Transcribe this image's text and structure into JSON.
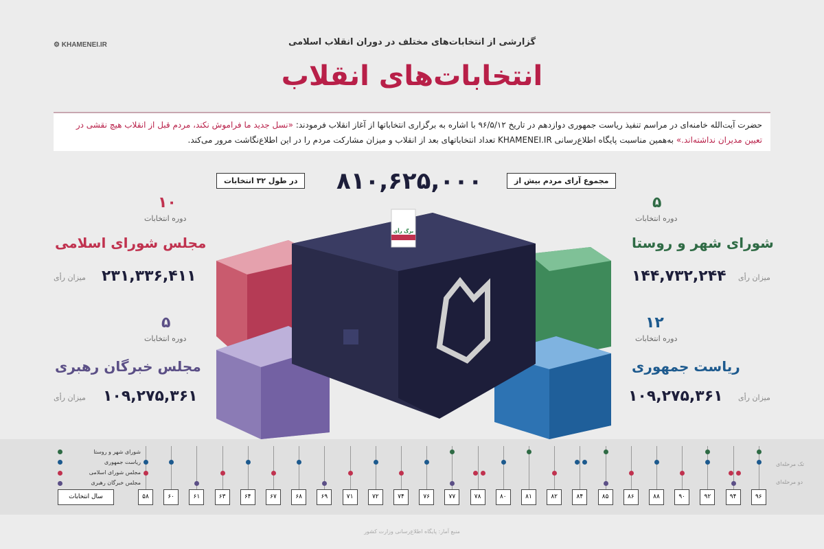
{
  "logo": "KHAMENEI.IR",
  "subtitle": "گزارشی از انتخابات‌های مختلف در دوران انقلاب اسلامی",
  "title": "انتخابات‌های انقلاب",
  "intro": {
    "text1": "حضرت آیت‌الله خامنه‌ای در مراسم تنفیذ ریاست جمهوری دوازدهم در تاریخ ۹۶/۵/۱۲ با اشاره به برگزاری انتخاباتها از آغاز انقلاب فرمودند: ",
    "quote": "«نسل جدید ما فراموش نکند، مردم قبل از انقلاب هیچ نقشی در تعیین مدیران نداشته‌اند.»",
    "text2": " به‌همین مناسبت پایگاه اطلاع‌رسانی KHAMENEI.IR تعداد انتخاباتهای بعد از انقلاب و میزان مشارکت مردم را در این اطلاع‌نگاشت مرور می‌کند."
  },
  "total": {
    "prefix": "مجموع آرای مردم بیش از",
    "value": "۸۱۰,۶۲۵,۰۰۰",
    "suffix": "در طول ۳۲ انتخابات"
  },
  "ballot_label": "برگ رأی",
  "stats": [
    {
      "count": "۱۰",
      "periods": "دوره انتخابات",
      "name": "مجلس شورای اسلامی",
      "votes": "۲۳۱,۳۳۶,۴۱۱",
      "votes_label": "میزان رأی",
      "color": "#c0324f"
    },
    {
      "count": "۵",
      "periods": "دوره انتخابات",
      "name": "مجلس خبرگان رهبری",
      "votes": "۱۰۹,۲۷۵,۳۶۱",
      "votes_label": "میزان رأی",
      "color": "#6a5a93"
    },
    {
      "count": "۵",
      "periods": "دوره انتخابات",
      "name": "شورای شهر و روستا",
      "votes": "۱۴۴,۷۳۲,۲۴۴",
      "votes_label": "میزان رأی",
      "color": "#2f6b45"
    },
    {
      "count": "۱۲",
      "periods": "دوره انتخابات",
      "name": "ریاست جمهوری",
      "votes": "۱۰۹,۲۷۵,۳۶۱",
      "votes_label": "میزان رأی",
      "color": "#1d5a8e"
    }
  ],
  "timeline": {
    "legend": [
      {
        "label": "شورای شهر و روستا",
        "color": "#2f6b45"
      },
      {
        "label": "ریاست جمهوری",
        "color": "#1d5a8e"
      },
      {
        "label": "مجلس شورای اسلامی",
        "color": "#c0324f"
      },
      {
        "label": "مجلس خبرگان رهبری",
        "color": "#5b4f86"
      }
    ],
    "years_label": "سال انتخابات",
    "single_stage": "تک مرحله‌ای",
    "two_stage": "دو مرحله‌ای",
    "years": [
      "۵۸",
      "۶۰",
      "۶۱",
      "۶۳",
      "۶۴",
      "۶۷",
      "۶۸",
      "۶۹",
      "۷۱",
      "۷۲",
      "۷۴",
      "۷۶",
      "۷۷",
      "۷۸",
      "۸۰",
      "۸۱",
      "۸۲",
      "۸۴",
      "۸۵",
      "۸۶",
      "۸۸",
      "۹۰",
      "۹۲",
      "۹۴",
      "۹۶"
    ],
    "events": [
      [
        1,
        2
      ],
      [
        1
      ],
      [
        3
      ],
      [
        2
      ],
      [
        1
      ],
      [
        2
      ],
      [
        1
      ],
      [
        3
      ],
      [
        2
      ],
      [
        1
      ],
      [
        2
      ],
      [
        1
      ],
      [
        0,
        3
      ],
      [
        "2d"
      ],
      [
        1
      ],
      [
        0
      ],
      [
        2
      ],
      [
        "1d"
      ],
      [
        0,
        3
      ],
      [
        2
      ],
      [
        1
      ],
      [
        2
      ],
      [
        0,
        1
      ],
      [
        "2d",
        3
      ],
      [
        0,
        1
      ]
    ]
  },
  "footer": "منبع آمار: پایگاه اطلاع‌رسانی وزارت کشور"
}
